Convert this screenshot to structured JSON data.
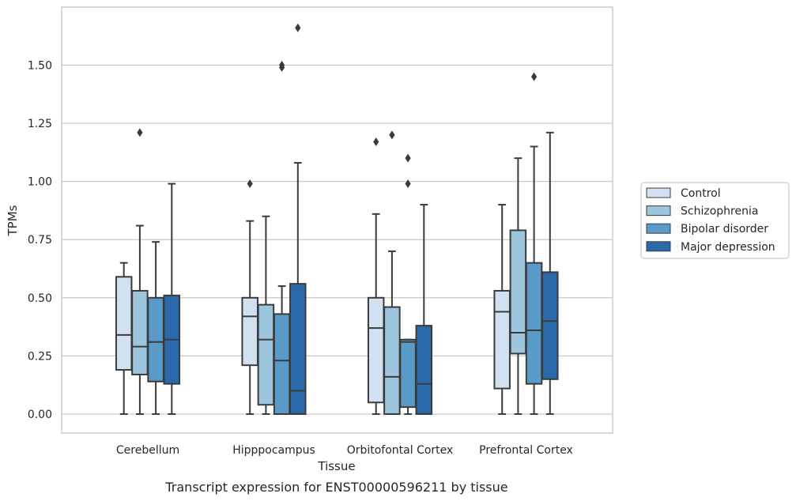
{
  "chart_data": {
    "type": "box",
    "caption": "Transcript expression for ENST00000596211 by tissue",
    "xlabel": "Tissue",
    "ylabel": "TPMs",
    "ylim": [
      -0.08,
      1.75
    ],
    "yticks": [
      0.0,
      0.25,
      0.5,
      0.75,
      1.0,
      1.25,
      1.5
    ],
    "ytick_labels": [
      "0.00",
      "0.25",
      "0.50",
      "0.75",
      "1.00",
      "1.25",
      "1.50"
    ],
    "grid": "horizontal",
    "legend_position": "right",
    "categories": [
      "Cerebellum",
      "Hipppocampus",
      "Orbitofontal Cortex",
      "Prefrontal Cortex"
    ],
    "series": [
      {
        "name": "Control",
        "color": "#d1e1f1",
        "boxes": [
          {
            "whisker_low": 0.0,
            "q1": 0.19,
            "median": 0.34,
            "q3": 0.59,
            "whisker_high": 0.65,
            "outliers": []
          },
          {
            "whisker_low": 0.0,
            "q1": 0.21,
            "median": 0.42,
            "q3": 0.5,
            "whisker_high": 0.83,
            "outliers": [
              0.99
            ]
          },
          {
            "whisker_low": 0.0,
            "q1": 0.05,
            "median": 0.37,
            "q3": 0.5,
            "whisker_high": 0.86,
            "outliers": [
              1.17
            ]
          },
          {
            "whisker_low": 0.0,
            "q1": 0.11,
            "median": 0.44,
            "q3": 0.53,
            "whisker_high": 0.9,
            "outliers": []
          }
        ]
      },
      {
        "name": "Schizophrenia",
        "color": "#9dc6de",
        "boxes": [
          {
            "whisker_low": 0.0,
            "q1": 0.17,
            "median": 0.29,
            "q3": 0.53,
            "whisker_high": 0.81,
            "outliers": [
              1.21
            ]
          },
          {
            "whisker_low": 0.0,
            "q1": 0.04,
            "median": 0.32,
            "q3": 0.47,
            "whisker_high": 0.85,
            "outliers": []
          },
          {
            "whisker_low": 0.0,
            "q1": 0.0,
            "median": 0.16,
            "q3": 0.46,
            "whisker_high": 0.7,
            "outliers": [
              1.2
            ]
          },
          {
            "whisker_low": 0.0,
            "q1": 0.26,
            "median": 0.35,
            "q3": 0.79,
            "whisker_high": 1.1,
            "outliers": []
          }
        ]
      },
      {
        "name": "Bipolar disorder",
        "color": "#5a9ac8",
        "boxes": [
          {
            "whisker_low": 0.0,
            "q1": 0.14,
            "median": 0.31,
            "q3": 0.5,
            "whisker_high": 0.74,
            "outliers": []
          },
          {
            "whisker_low": 0.0,
            "q1": 0.0,
            "median": 0.23,
            "q3": 0.43,
            "whisker_high": 0.55,
            "outliers": [
              1.49,
              1.5
            ]
          },
          {
            "whisker_low": 0.0,
            "q1": 0.03,
            "median": 0.31,
            "q3": 0.32,
            "whisker_high": 0.32,
            "outliers": [
              0.99,
              1.1
            ]
          },
          {
            "whisker_low": 0.0,
            "q1": 0.13,
            "median": 0.36,
            "q3": 0.65,
            "whisker_high": 1.15,
            "outliers": [
              1.45
            ]
          }
        ]
      },
      {
        "name": "Major depression",
        "color": "#2a6aab",
        "boxes": [
          {
            "whisker_low": 0.0,
            "q1": 0.13,
            "median": 0.32,
            "q3": 0.51,
            "whisker_high": 0.99,
            "outliers": []
          },
          {
            "whisker_low": 0.0,
            "q1": 0.0,
            "median": 0.1,
            "q3": 0.56,
            "whisker_high": 1.08,
            "outliers": [
              1.66
            ]
          },
          {
            "whisker_low": 0.0,
            "q1": 0.0,
            "median": 0.13,
            "q3": 0.38,
            "whisker_high": 0.9,
            "outliers": []
          },
          {
            "whisker_low": 0.0,
            "q1": 0.15,
            "median": 0.4,
            "q3": 0.61,
            "whisker_high": 1.21,
            "outliers": []
          }
        ]
      }
    ]
  },
  "colors": {
    "box_edge": "#3b3b3b",
    "grid": "#cccccc",
    "frame": "#cccccc",
    "text": "#262626"
  }
}
